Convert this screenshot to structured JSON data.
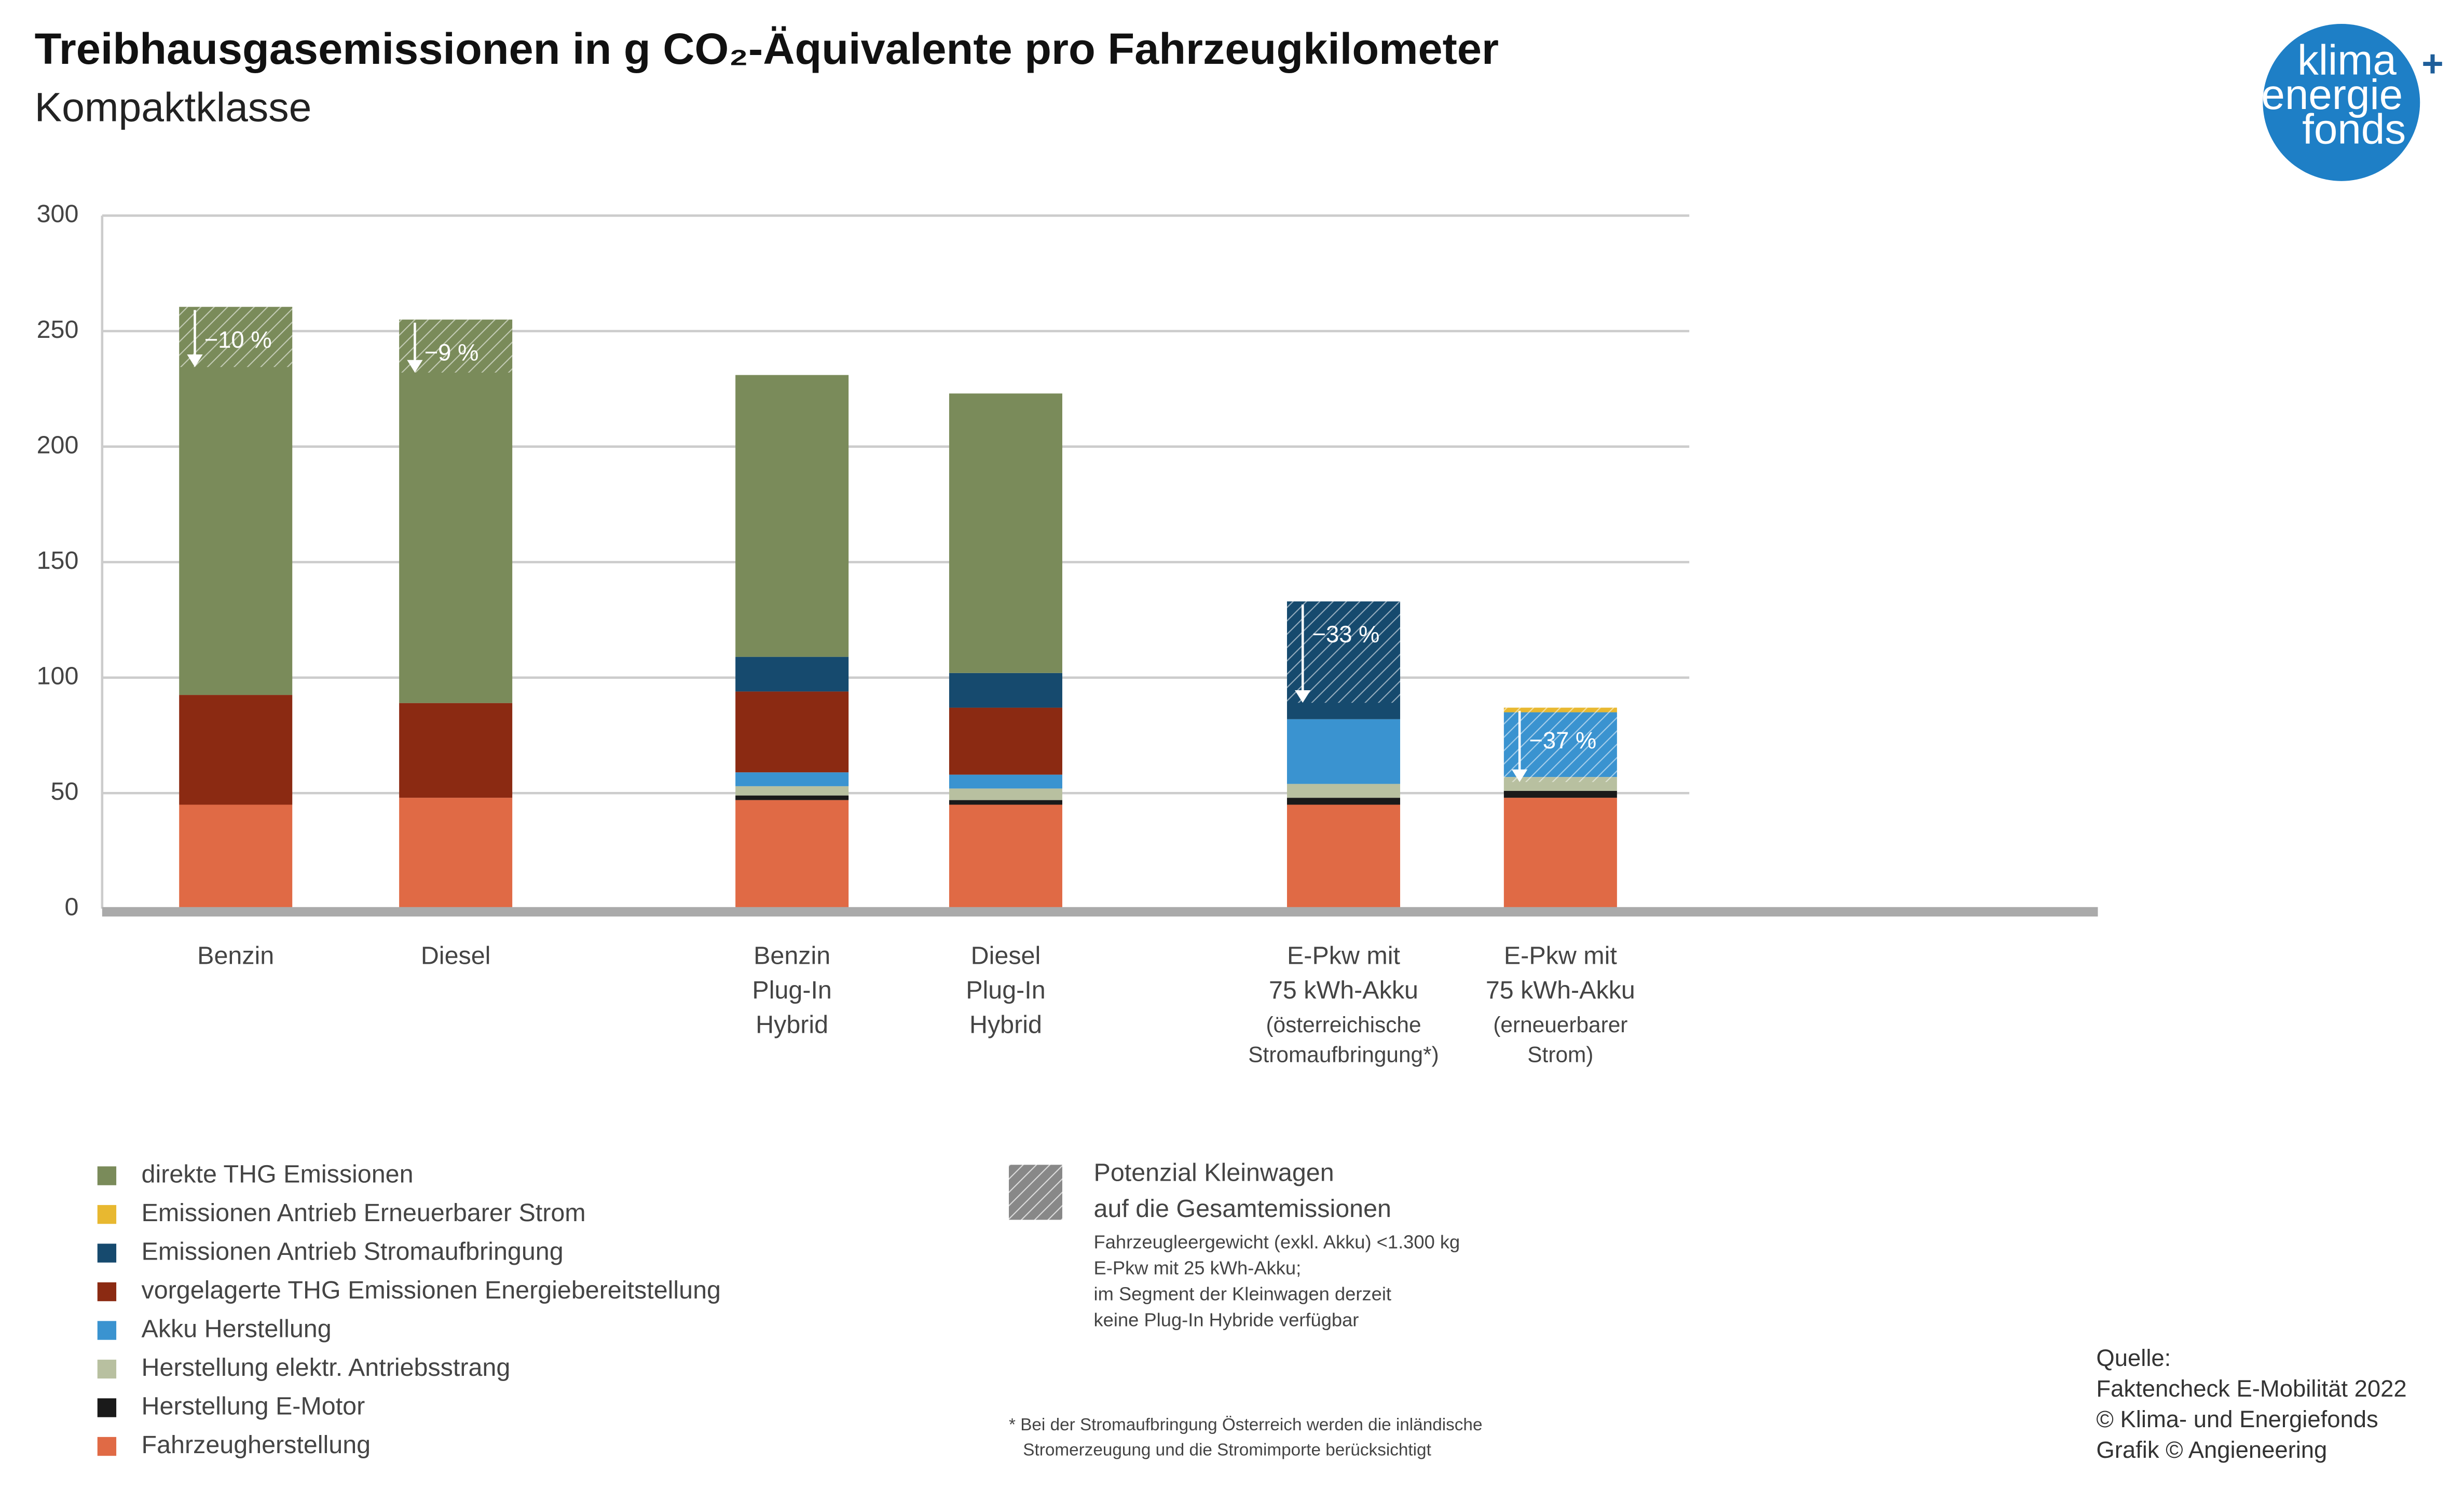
{
  "chart_data": {
    "type": "bar",
    "stacked": true,
    "title": "Treibhausgasemissionen in g CO₂-Äquivalente pro Fahrzeugkilometer",
    "subtitle": "Kompaktklasse",
    "categories": [
      [
        "Benzin"
      ],
      [
        "Diesel"
      ],
      [
        "Benzin",
        "Plug-In",
        "Hybrid"
      ],
      [
        "Diesel",
        "Plug-In",
        "Hybrid"
      ],
      [
        "E-Pkw mit",
        "75 kWh-Akku",
        "(österreichische",
        "Stromaufbringung*)"
      ],
      [
        "E-Pkw mit",
        "75 kWh-Akku",
        "(erneuerbarer",
        "Strom)"
      ]
    ],
    "series": [
      {
        "name": "direkte THG Emissionen",
        "color": "#7a8b5a",
        "values": [
          168,
          166,
          122,
          121,
          0,
          0
        ]
      },
      {
        "name": "Emissionen Antrieb Erneuerbarer Strom",
        "color": "#e8b830",
        "values": [
          0,
          0,
          0,
          0,
          0,
          2
        ]
      },
      {
        "name": "Emissionen Antrieb Stromaufbringung",
        "color": "#164a6e",
        "values": [
          0,
          0,
          15,
          15,
          51,
          0
        ]
      },
      {
        "name": "vorgelagerte THG Emissionen Energiebereitstellung",
        "color": "#8b2a12",
        "values": [
          47.5,
          41,
          35,
          29,
          0,
          0
        ]
      },
      {
        "name": "Akku Herstellung",
        "color": "#3a93d0",
        "values": [
          0,
          0,
          6,
          6,
          28,
          28
        ]
      },
      {
        "name": "Herstellung elektr. Antriebsstrang",
        "color": "#b8c0a0",
        "values": [
          0,
          0,
          4,
          5,
          6,
          6
        ]
      },
      {
        "name": "Herstellung E-Motor",
        "color": "#1a1a1a",
        "values": [
          0,
          0,
          2,
          2,
          3,
          3
        ]
      },
      {
        "name": "Fahrzeugherstellung",
        "color": "#e06a45",
        "values": [
          45,
          48,
          47,
          45,
          45,
          48
        ]
      }
    ],
    "reduction_potential": {
      "values": [
        -10,
        -9,
        null,
        null,
        -33,
        -37
      ],
      "value_labels": [
        "−10 %",
        "−9 %",
        null,
        null,
        "−33 %",
        "−37 %"
      ]
    },
    "ylim": [
      0,
      300
    ],
    "yticks": [
      0,
      50,
      100,
      150,
      200,
      250,
      300
    ],
    "grid": true,
    "hatch_legend": {
      "lines": [
        "Potenzial Kleinwagen",
        "auf die Gesamtemissionen"
      ],
      "notes": [
        "Fahrzeugleergewicht (exkl. Akku) <1.300 kg",
        "E-Pkw mit 25 kWh-Akku;",
        "im Segment der Kleinwagen derzeit",
        "keine Plug-In Hybride verfügbar"
      ]
    },
    "footnote": [
      "*  Bei der Stromaufbringung Österreich werden die inländische",
      "Stromerzeugung und die Stromimporte berücksichtigt"
    ],
    "source": [
      "Quelle:",
      "Faktencheck E-Mobilität 2022",
      "© Klima- und Energiefonds",
      "Grafik © Angieneering"
    ],
    "logo": [
      "klima",
      "+",
      "energie",
      "fonds"
    ]
  }
}
